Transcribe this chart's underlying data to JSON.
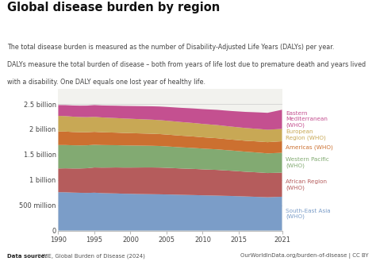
{
  "title": "Global disease burden by region",
  "subtitle_line1": "The total disease burden is measured as the number of Disability-Adjusted Life Years (DALYs) per year.",
  "subtitle_line2": "DALYs measure the total burden of disease – both from years of life lost due to premature death and years lived",
  "subtitle_line3": "with a disability. One DALY equals one lost year of healthy life.",
  "footer_left_bold": "Data source:",
  "footer_left_rest": " IHME, Global Burden of Disease (2024)",
  "footer_right": "OurWorldInData.org/burden-of-disease | CC BY",
  "years": [
    1990,
    1991,
    1992,
    1993,
    1994,
    1995,
    1996,
    1997,
    1998,
    1999,
    2000,
    2001,
    2002,
    2003,
    2004,
    2005,
    2006,
    2007,
    2008,
    2009,
    2010,
    2011,
    2012,
    2013,
    2014,
    2015,
    2016,
    2017,
    2018,
    2019,
    2021
  ],
  "regions": [
    "South-East Asia\n(WHO)",
    "African Region\n(WHO)",
    "Western Pacific\n(WHO)",
    "Americas (WHO)",
    "European\nRegion (WHO)",
    "Eastern\nMediterranean\n(WHO)"
  ],
  "label_regions": [
    "South-East Asia\n(WHO)",
    "African Region\n(WHO)",
    "Western Pacific\n(WHO)",
    "Americas (WHO)",
    "European\nRegion (WHO)",
    "Eastern\nMediterranean\n(WHO)"
  ],
  "colors": [
    "#7b9dc8",
    "#b55c5c",
    "#82aa72",
    "#cc7030",
    "#c8a855",
    "#c45090"
  ],
  "data": {
    "South-East Asia\n(WHO)": [
      758,
      756,
      750,
      746,
      743,
      748,
      740,
      736,
      733,
      728,
      726,
      722,
      720,
      718,
      716,
      713,
      710,
      706,
      703,
      700,
      696,
      693,
      690,
      686,
      683,
      678,
      673,
      668,
      663,
      658,
      668
    ],
    "African Region\n(WHO)": [
      468,
      473,
      476,
      480,
      488,
      498,
      503,
      508,
      513,
      516,
      518,
      523,
      526,
      528,
      528,
      526,
      523,
      520,
      518,
      516,
      513,
      510,
      508,
      503,
      498,
      493,
      488,
      486,
      483,
      478,
      476
    ],
    "Western Pacific\n(WHO)": [
      463,
      460,
      458,
      456,
      453,
      448,
      446,
      443,
      440,
      438,
      436,
      433,
      430,
      428,
      426,
      423,
      420,
      418,
      416,
      413,
      410,
      408,
      406,
      403,
      400,
      398,
      396,
      393,
      390,
      388,
      392
    ],
    "Americas (WHO)": [
      268,
      266,
      263,
      261,
      258,
      256,
      253,
      251,
      248,
      246,
      244,
      242,
      240,
      238,
      236,
      234,
      232,
      230,
      228,
      226,
      224,
      222,
      220,
      218,
      216,
      216,
      216,
      218,
      220,
      222,
      228
    ],
    "European\nRegion (WHO)": [
      308,
      306,
      303,
      300,
      298,
      296,
      293,
      290,
      288,
      286,
      284,
      282,
      280,
      278,
      276,
      274,
      272,
      270,
      268,
      266,
      264,
      262,
      260,
      258,
      256,
      254,
      252,
      250,
      248,
      246,
      244
    ],
    "Eastern\nMediterranean\n(WHO)": [
      213,
      216,
      220,
      224,
      228,
      232,
      236,
      240,
      244,
      248,
      252,
      256,
      260,
      264,
      268,
      272,
      276,
      280,
      284,
      288,
      292,
      296,
      300,
      304,
      308,
      313,
      318,
      323,
      328,
      333,
      378
    ]
  },
  "ytick_labels": [
    "0",
    "500 million",
    "1 billion",
    "1.5 billion",
    "2 billion",
    "2.5 billion"
  ],
  "ytick_values": [
    0,
    500,
    1000,
    1500,
    2000,
    2500
  ],
  "xtick_values": [
    1990,
    1995,
    2000,
    2005,
    2010,
    2015,
    2021
  ],
  "ylim": [
    0,
    2800
  ],
  "logo_color": "#c0102a",
  "bg_color": "#ffffff",
  "plot_bg": "#f2f2ee"
}
